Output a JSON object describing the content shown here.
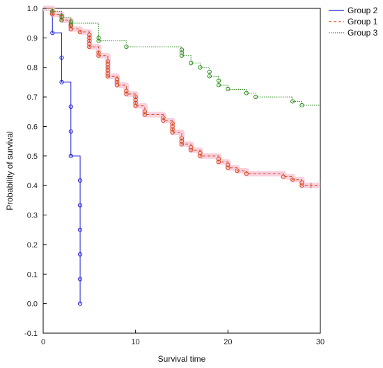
{
  "chart_data": {
    "type": "line",
    "subtype": "kaplan-meier-step",
    "xlabel": "Survival time",
    "ylabel": "Probability of survival",
    "xlim": [
      0,
      30
    ],
    "ylim": [
      -0.1,
      1.0
    ],
    "xticks": [
      "0",
      "10",
      "20",
      "30"
    ],
    "yticks": [
      "-0.1",
      "0.0",
      "0.1",
      "0.2",
      "0.3",
      "0.4",
      "0.5",
      "0.6",
      "0.7",
      "0.8",
      "0.9",
      "1.0"
    ],
    "grid": false,
    "legend_position": "top-right",
    "series": [
      {
        "name": "Group 2",
        "color": "#1f1fd6",
        "line_style": "solid",
        "steps": [
          [
            0,
            1.0
          ],
          [
            1,
            0.917
          ],
          [
            2,
            0.75
          ],
          [
            3,
            0.5
          ],
          [
            4,
            0.0
          ]
        ],
        "markers": [
          [
            1,
            0.917
          ],
          [
            2,
            0.833
          ],
          [
            2,
            0.75
          ],
          [
            3,
            0.667
          ],
          [
            3,
            0.583
          ],
          [
            3,
            0.5
          ],
          [
            4,
            0.417
          ],
          [
            4,
            0.333
          ],
          [
            4,
            0.25
          ],
          [
            4,
            0.167
          ],
          [
            4,
            0.083
          ],
          [
            4,
            0.0
          ]
        ],
        "censored": []
      },
      {
        "name": "Group 1",
        "color": "#d94a1a",
        "line_style": "dashed",
        "band_color": "#f6c6d8",
        "steps": [
          [
            0,
            1.0
          ],
          [
            1,
            0.98
          ],
          [
            2,
            0.96
          ],
          [
            3,
            0.93
          ],
          [
            4,
            0.92
          ],
          [
            5,
            0.87
          ],
          [
            6,
            0.84
          ],
          [
            7,
            0.77
          ],
          [
            8,
            0.74
          ],
          [
            9,
            0.71
          ],
          [
            10,
            0.67
          ],
          [
            11,
            0.64
          ],
          [
            13,
            0.62
          ],
          [
            14,
            0.58
          ],
          [
            15,
            0.54
          ],
          [
            16,
            0.52
          ],
          [
            17,
            0.5
          ],
          [
            19,
            0.48
          ],
          [
            20,
            0.46
          ],
          [
            21,
            0.45
          ],
          [
            22,
            0.44
          ],
          [
            26,
            0.43
          ],
          [
            27,
            0.42
          ],
          [
            28,
            0.4
          ],
          [
            30,
            0.4
          ]
        ],
        "markers": [
          [
            1,
            0.99
          ],
          [
            1,
            0.985
          ],
          [
            1,
            0.98
          ],
          [
            2,
            0.97
          ],
          [
            2,
            0.96
          ],
          [
            3,
            0.94
          ],
          [
            3,
            0.93
          ],
          [
            4,
            0.92
          ],
          [
            5,
            0.91
          ],
          [
            5,
            0.9
          ],
          [
            5,
            0.89
          ],
          [
            5,
            0.88
          ],
          [
            5,
            0.87
          ],
          [
            6,
            0.85
          ],
          [
            6,
            0.84
          ],
          [
            7,
            0.82
          ],
          [
            7,
            0.81
          ],
          [
            7,
            0.8
          ],
          [
            7,
            0.79
          ],
          [
            7,
            0.78
          ],
          [
            7,
            0.77
          ],
          [
            8,
            0.76
          ],
          [
            8,
            0.75
          ],
          [
            8,
            0.74
          ],
          [
            9,
            0.72
          ],
          [
            9,
            0.71
          ],
          [
            10,
            0.7
          ],
          [
            10,
            0.69
          ],
          [
            10,
            0.68
          ],
          [
            10,
            0.67
          ],
          [
            11,
            0.65
          ],
          [
            11,
            0.64
          ],
          [
            13,
            0.63
          ],
          [
            13,
            0.62
          ],
          [
            14,
            0.61
          ],
          [
            14,
            0.6
          ],
          [
            14,
            0.59
          ],
          [
            14,
            0.58
          ],
          [
            15,
            0.56
          ],
          [
            15,
            0.55
          ],
          [
            15,
            0.54
          ],
          [
            16,
            0.53
          ],
          [
            16,
            0.52
          ],
          [
            17,
            0.51
          ],
          [
            17,
            0.5
          ],
          [
            19,
            0.49
          ],
          [
            19,
            0.48
          ],
          [
            20,
            0.47
          ],
          [
            20,
            0.46
          ],
          [
            21,
            0.45
          ],
          [
            22,
            0.44
          ],
          [
            26,
            0.43
          ],
          [
            27,
            0.42
          ],
          [
            28,
            0.41
          ],
          [
            28,
            0.4
          ]
        ],
        "censored": [
          [
            29,
            0.4
          ]
        ]
      },
      {
        "name": "Group 3",
        "color": "#2e8b1e",
        "line_style": "dotted",
        "steps": [
          [
            0,
            1.0
          ],
          [
            1,
            0.99
          ],
          [
            2,
            0.97
          ],
          [
            3,
            0.95
          ],
          [
            6,
            0.89
          ],
          [
            9,
            0.87
          ],
          [
            15,
            0.84
          ],
          [
            16,
            0.815
          ],
          [
            17,
            0.8
          ],
          [
            18,
            0.77
          ],
          [
            19,
            0.74
          ],
          [
            20,
            0.725
          ],
          [
            22,
            0.713
          ],
          [
            23,
            0.7
          ],
          [
            27,
            0.685
          ],
          [
            28,
            0.672
          ],
          [
            30,
            0.672
          ]
        ],
        "markers": [
          [
            1,
            0.99
          ],
          [
            2,
            0.975
          ],
          [
            2,
            0.96
          ],
          [
            3,
            0.955
          ],
          [
            3,
            0.945
          ],
          [
            6,
            0.9
          ],
          [
            6,
            0.89
          ],
          [
            9,
            0.87
          ],
          [
            15,
            0.86
          ],
          [
            15,
            0.85
          ],
          [
            15,
            0.84
          ],
          [
            16,
            0.815
          ],
          [
            17,
            0.8
          ],
          [
            18,
            0.785
          ],
          [
            18,
            0.77
          ],
          [
            19,
            0.755
          ],
          [
            19,
            0.74
          ],
          [
            20,
            0.727
          ],
          [
            22,
            0.713
          ],
          [
            23,
            0.7
          ],
          [
            27,
            0.685
          ],
          [
            28,
            0.672
          ]
        ],
        "censored": []
      }
    ]
  }
}
